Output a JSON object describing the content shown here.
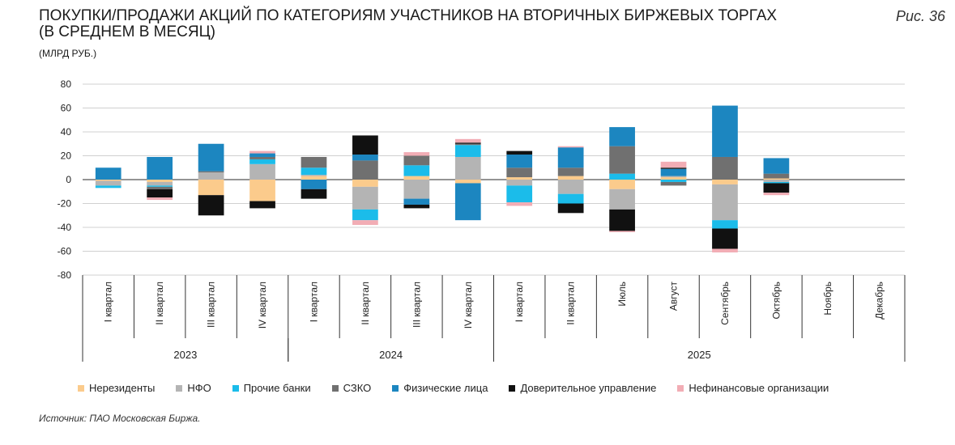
{
  "header": {
    "title_line1": "ПОКУПКИ/ПРОДАЖИ АКЦИЙ ПО КАТЕГОРИЯМ УЧАСТНИКОВ НА ВТОРИЧНЫХ БИРЖЕВЫХ ТОРГАХ",
    "title_line2": "(В СРЕДНЕМ В МЕСЯЦ)",
    "unit": "(МЛРД РУБ.)",
    "figure": "Рис. 36"
  },
  "source": "Источник: ПАО Московская Биржа.",
  "colors": {
    "nonres": "#fbcb8c",
    "nfo": "#b4b4b4",
    "banks": "#1bbcea",
    "szko": "#707070",
    "phys": "#1c86c0",
    "du": "#111111",
    "nonfin": "#f2adb5",
    "grid": "#d0d0d0",
    "axis": "#333333"
  },
  "chart_data": {
    "type": "bar",
    "stacked": true,
    "title": "ПОКУПКИ/ПРОДАЖИ АКЦИЙ ПО КАТЕГОРИЯМ УЧАСТНИКОВ НА ВТОРИЧНЫХ БИРЖЕВЫХ ТОРГАХ (В СРЕДНЕМ В МЕСЯЦ)",
    "ylabel": "МЛРД РУБ.",
    "ylim": [
      -80,
      80
    ],
    "yticks": [
      80,
      60,
      40,
      20,
      0,
      -20,
      -40,
      -60,
      -80
    ],
    "grid": true,
    "legend_position": "bottom",
    "categories": [
      "I квартал",
      "II квартал",
      "III квартал",
      "IV квартал",
      "I квартал",
      "II квартал",
      "III квартал",
      "IV квартал",
      "I квартал",
      "II квартал",
      "Июль",
      "Август",
      "Сентябрь",
      "Октябрь",
      "Ноябрь",
      "Декабрь"
    ],
    "groups": [
      {
        "label": "2023",
        "start": 0,
        "end": 3
      },
      {
        "label": "2024",
        "start": 4,
        "end": 7
      },
      {
        "label": "2025",
        "start": 8,
        "end": 15
      }
    ],
    "series": [
      {
        "key": "nonres",
        "name": "Нерезиденты",
        "values": [
          -1,
          -2,
          -13,
          -18,
          3,
          -6,
          3,
          -3,
          2,
          3,
          -8,
          2,
          -4,
          1,
          0,
          0
        ]
      },
      {
        "key": "nfo",
        "name": "НФО",
        "values": [
          -4,
          -3,
          6,
          13,
          1,
          -19,
          -16,
          19,
          -5,
          -12,
          -17,
          1,
          -30,
          -2,
          0,
          0
        ]
      },
      {
        "key": "banks",
        "name": "Прочие банки",
        "values": [
          -2,
          -1,
          0,
          4,
          6,
          -9,
          9,
          10,
          -14,
          -8,
          5,
          -2,
          -7,
          -1,
          0,
          0
        ]
      },
      {
        "key": "szko",
        "name": "СЗКО",
        "values": [
          0,
          -2,
          1,
          2,
          9,
          16,
          8,
          1,
          8,
          7,
          23,
          -3,
          19,
          4,
          0,
          0
        ]
      },
      {
        "key": "phys",
        "name": "Физические лица",
        "values": [
          10,
          19,
          23,
          3,
          -8,
          5,
          -5,
          -31,
          11,
          17,
          16,
          6,
          43,
          13,
          0,
          0
        ]
      },
      {
        "key": "du",
        "name": "Доверительное управление",
        "values": [
          0,
          -7,
          -17,
          -6,
          -8,
          16,
          -3,
          1,
          3,
          -8,
          -18,
          1,
          -17,
          -8,
          0,
          0
        ]
      },
      {
        "key": "nonfin",
        "name": "Нефинансовые организации",
        "values": [
          0,
          -2,
          0,
          2,
          0,
          -4,
          3,
          3,
          -3,
          1,
          -1,
          5,
          -3,
          -2,
          0,
          0
        ]
      }
    ]
  }
}
